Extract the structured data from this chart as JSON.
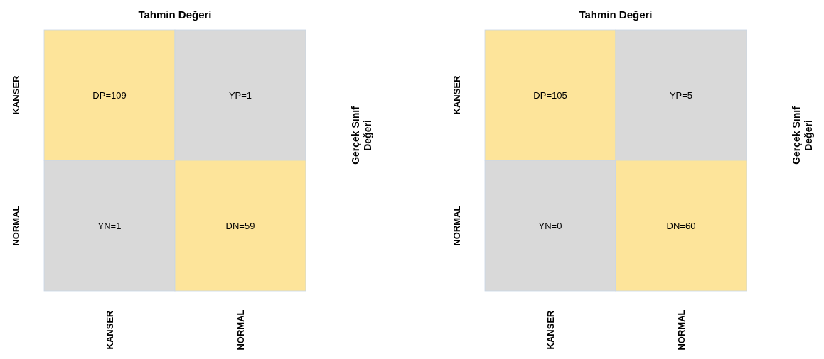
{
  "chart_data": [
    {
      "type": "heatmap",
      "title": "Tahmin Değeri",
      "ylabel": "Gerçek Sınıf Değeri",
      "categories": [
        "KANSER",
        "NORMAL"
      ],
      "y_categories": [
        "KANSER",
        "NORMAL"
      ],
      "cells": [
        [
          109,
          1
        ],
        [
          1,
          59
        ]
      ],
      "cell_labels": [
        [
          "DP=109",
          "YP=1"
        ],
        [
          "YN=1",
          "DN=59"
        ]
      ],
      "colors": [
        [
          "#fde49a",
          "#d9d9d9"
        ],
        [
          "#d9d9d9",
          "#fde49a"
        ]
      ]
    },
    {
      "type": "heatmap",
      "title": "Tahmin Değeri",
      "ylabel": "Gerçek Sınıf Değeri",
      "categories": [
        "KANSER",
        "NORMAL"
      ],
      "y_categories": [
        "KANSER",
        "NORMAL"
      ],
      "cells": [
        [
          105,
          5
        ],
        [
          0,
          60
        ]
      ],
      "cell_labels": [
        [
          "DP=105",
          "YP=5"
        ],
        [
          "YN=0",
          "DN=60"
        ]
      ],
      "colors": [
        [
          "#fde49a",
          "#d9d9d9"
        ],
        [
          "#d9d9d9",
          "#fde49a"
        ]
      ]
    }
  ]
}
